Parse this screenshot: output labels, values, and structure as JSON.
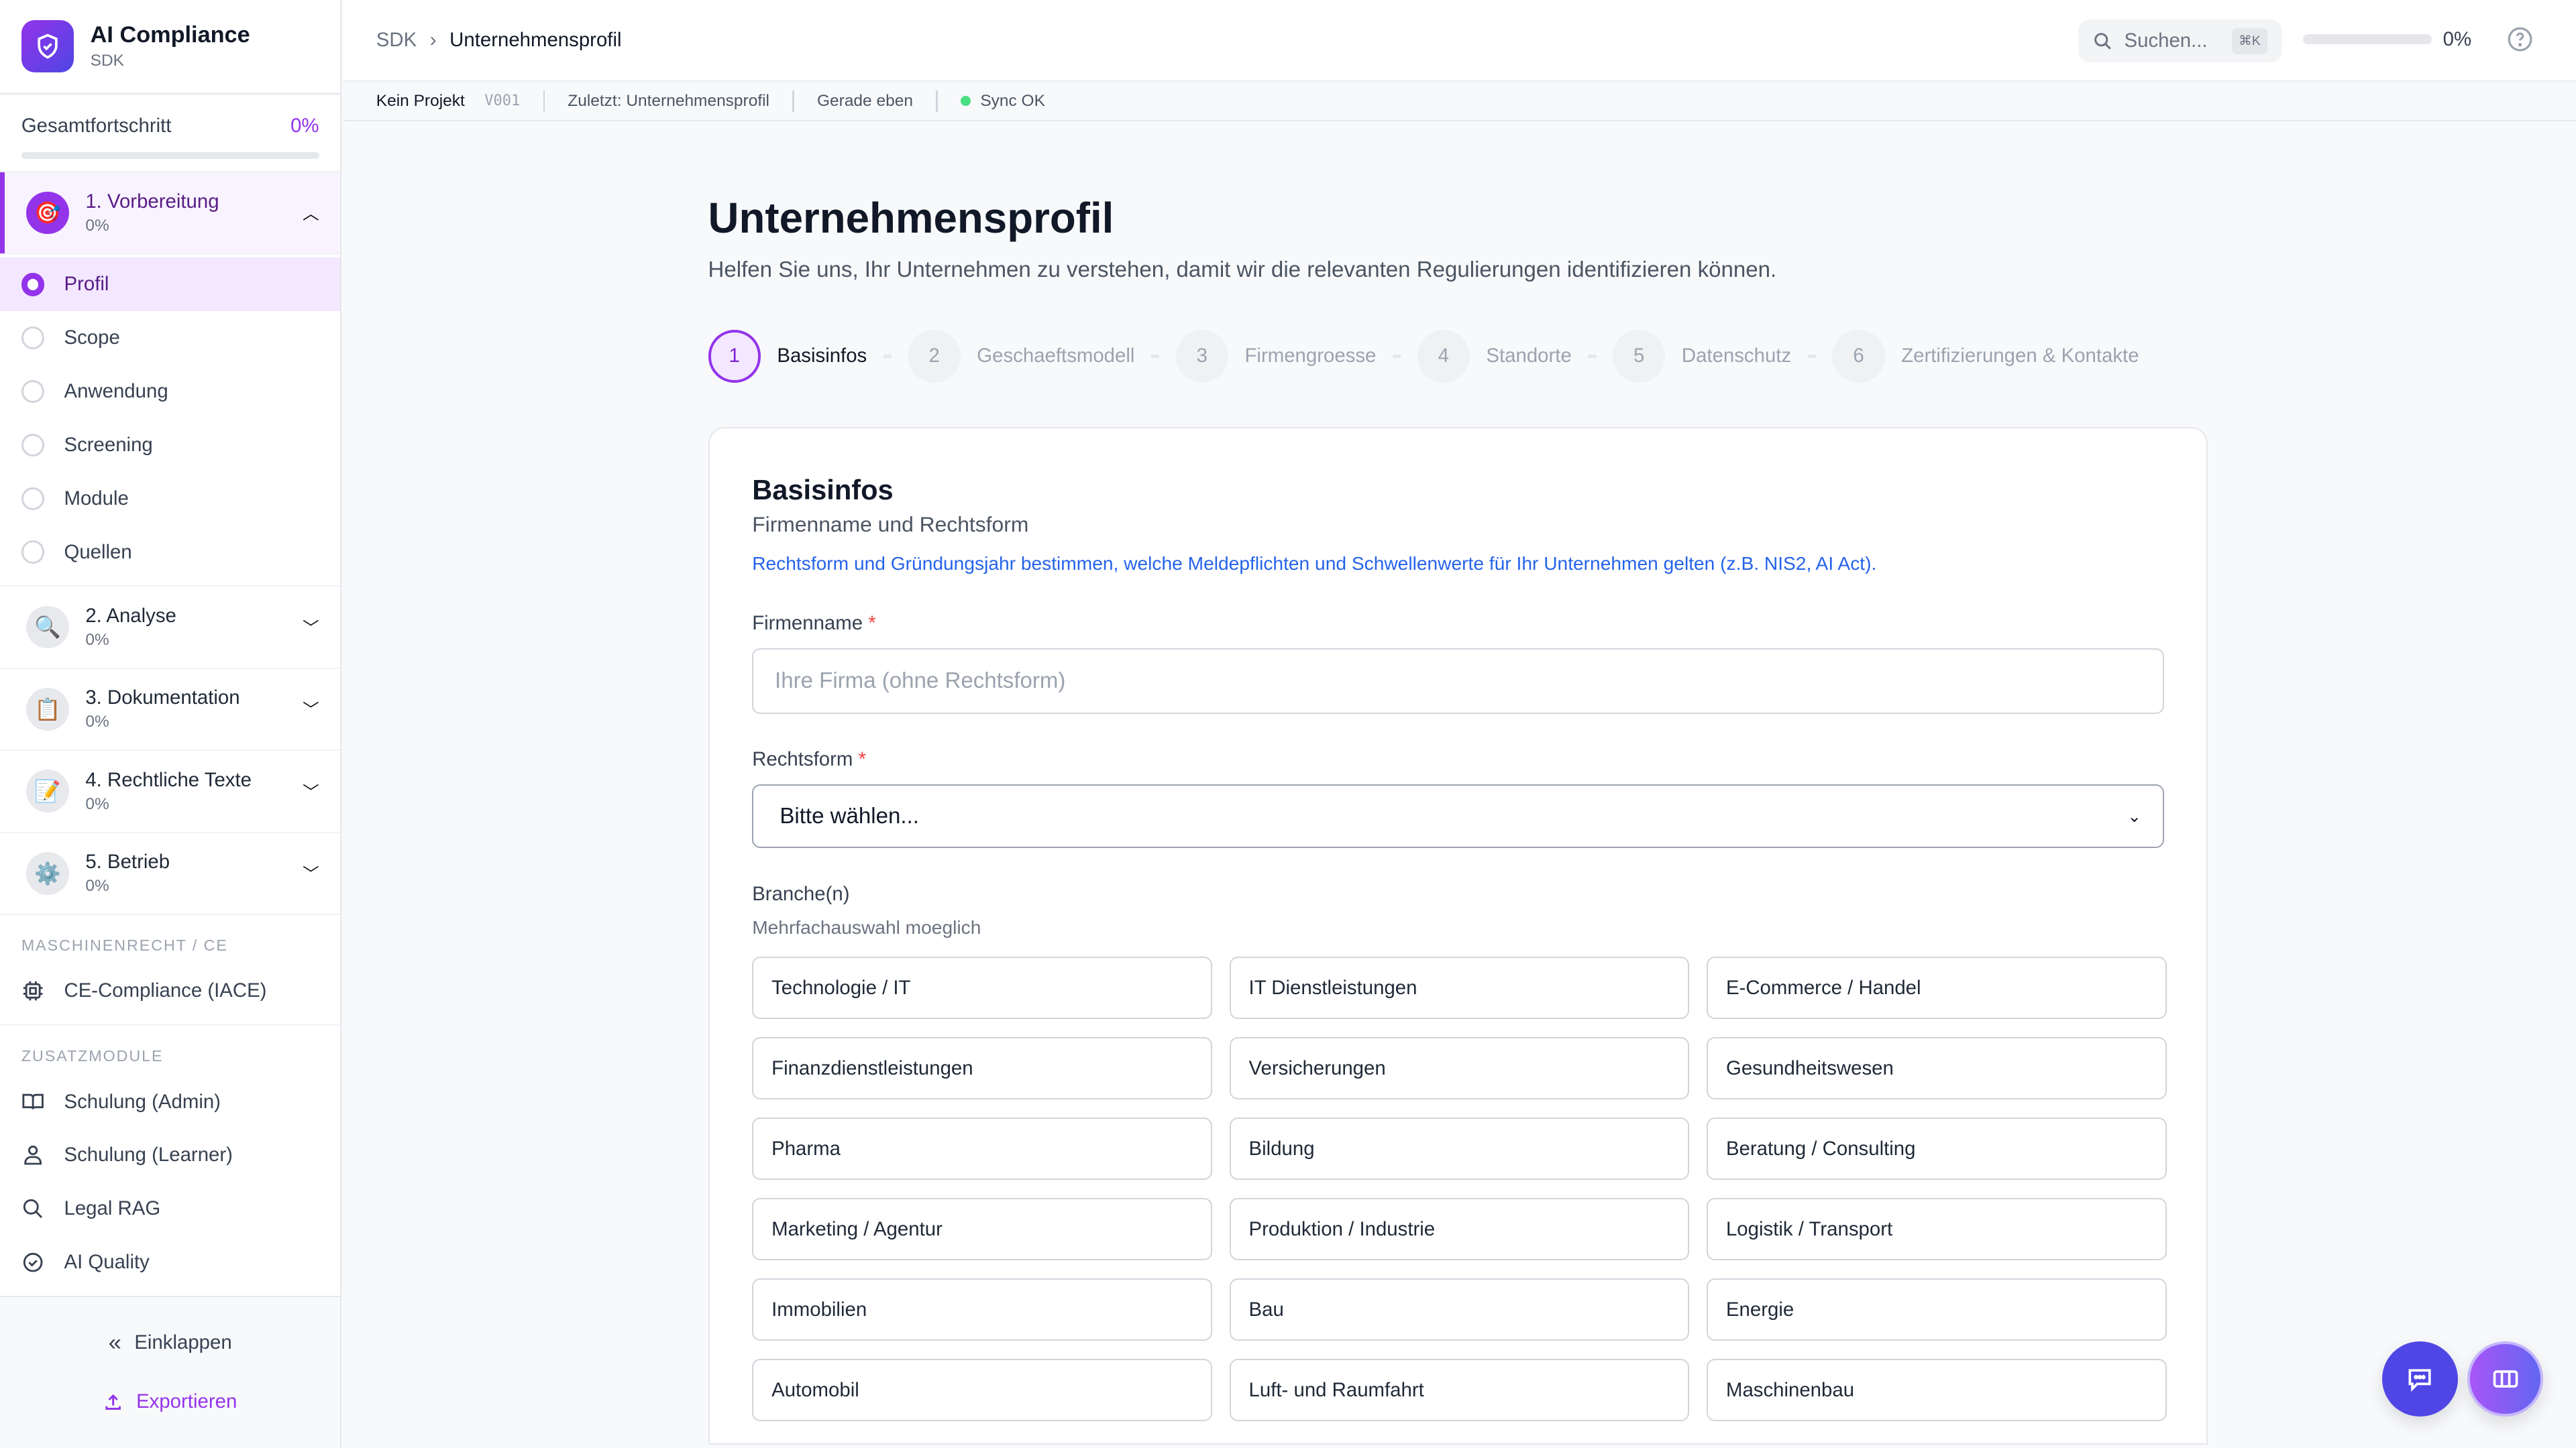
{
  "app": {
    "title": "AI Compliance",
    "subtitle": "SDK"
  },
  "sidebar": {
    "overall_label": "Gesamtfortschritt",
    "overall_pct": "0%",
    "overall_progress": 0,
    "sections": [
      {
        "title": "1. Vorbereitung",
        "pct": "0%",
        "icon": "target-icon",
        "expanded": true
      },
      {
        "title": "2. Analyse",
        "pct": "0%",
        "icon": "magnifier-icon",
        "expanded": false
      },
      {
        "title": "3. Dokumentation",
        "pct": "0%",
        "icon": "clipboard-icon",
        "expanded": false
      },
      {
        "title": "4. Rechtliche Texte",
        "pct": "0%",
        "icon": "memo-icon",
        "expanded": false
      },
      {
        "title": "5. Betrieb",
        "pct": "0%",
        "icon": "gear-icon",
        "expanded": false
      }
    ],
    "sub_items": [
      {
        "label": "Profil",
        "active": true
      },
      {
        "label": "Scope"
      },
      {
        "label": "Anwendung"
      },
      {
        "label": "Screening"
      },
      {
        "label": "Module"
      },
      {
        "label": "Quellen"
      }
    ],
    "group_ce": {
      "heading": "MASCHINENRECHT / CE",
      "items": [
        {
          "label": "CE-Compliance (IACE)",
          "icon": "chip-icon"
        }
      ]
    },
    "group_extra": {
      "heading": "ZUSATZMODULE",
      "items": [
        {
          "label": "Schulung (Admin)",
          "icon": "book-icon"
        },
        {
          "label": "Schulung (Learner)",
          "icon": "user-icon"
        },
        {
          "label": "Legal RAG",
          "icon": "search-icon"
        },
        {
          "label": "AI Quality",
          "icon": "check-circle-icon"
        }
      ]
    },
    "collapse_label": "Einklappen",
    "export_label": "Exportieren"
  },
  "topbar": {
    "breadcrumb": [
      "SDK",
      "Unternehmensprofil"
    ],
    "search_placeholder": "Suchen...",
    "search_shortcut": "⌘K",
    "progress_pct": "0%",
    "progress": 0
  },
  "statusbar": {
    "project": "Kein Projekt",
    "version": "V001",
    "last": "Zuletzt: Unternehmensprofil",
    "time": "Gerade eben",
    "sync": "Sync OK"
  },
  "page": {
    "title": "Unternehmensprofil",
    "lead": "Helfen Sie uns, Ihr Unternehmen zu verstehen, damit wir die relevanten Regulierungen identifizieren können.",
    "steps": [
      {
        "n": "1",
        "label": "Basisinfos",
        "active": true
      },
      {
        "n": "2",
        "label": "Geschaeftsmodell"
      },
      {
        "n": "3",
        "label": "Firmengroesse"
      },
      {
        "n": "4",
        "label": "Standorte"
      },
      {
        "n": "5",
        "label": "Datenschutz"
      },
      {
        "n": "6",
        "label": "Zertifizierungen & Kontakte"
      }
    ]
  },
  "form": {
    "title": "Basisinfos",
    "subtitle": "Firmenname und Rechtsform",
    "info": "Rechtsform und Gründungsjahr bestimmen, welche Meldepflichten und Schwellenwerte für Ihr Unternehmen gelten (z.B. NIS2, AI Act).",
    "company_label": "Firmenname",
    "required_mark": "*",
    "company_placeholder": "Ihre Firma (ohne Rechtsform)",
    "company_value": "",
    "legal_label": "Rechtsform",
    "legal_value": "Bitte wählen...",
    "industry_label": "Branche(n)",
    "industry_hint": "Mehrfachauswahl moeglich",
    "industries": [
      "Technologie / IT",
      "IT Dienstleistungen",
      "E-Commerce / Handel",
      "Finanzdienstleistungen",
      "Versicherungen",
      "Gesundheitswesen",
      "Pharma",
      "Bildung",
      "Beratung / Consulting",
      "Marketing / Agentur",
      "Produktion / Industrie",
      "Logistik / Transport",
      "Immobilien",
      "Bau",
      "Energie",
      "Automobil",
      "Luft- und Raumfahrt",
      "Maschinenbau"
    ]
  },
  "colors": {
    "accent": "#9333ea",
    "link": "#2563eb",
    "fab_chat": "#4f46e5"
  }
}
